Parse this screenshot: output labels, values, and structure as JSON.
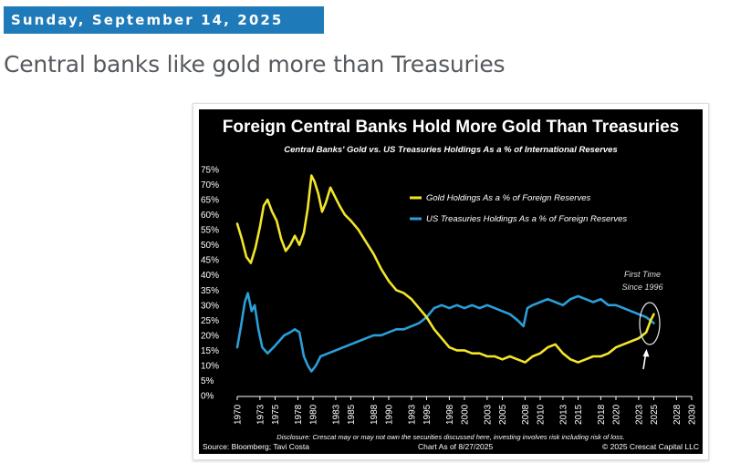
{
  "post": {
    "date": "Sunday, September 14, 2025",
    "title": "Central banks like gold more than Treasuries"
  },
  "chart_data": {
    "type": "line",
    "title": "Foreign Central Banks Hold More Gold Than Treasuries",
    "subtitle": "Central Banks' Gold vs. US Treasuries Holdings As a % of International Reserves",
    "ylim": [
      0,
      75
    ],
    "y_ticks": [
      "0%",
      "5%",
      "10%",
      "15%",
      "20%",
      "25%",
      "30%",
      "35%",
      "40%",
      "45%",
      "50%",
      "55%",
      "60%",
      "65%",
      "70%",
      "75%"
    ],
    "xlim": [
      1970,
      2030
    ],
    "x_ticks": [
      "1970",
      "1973",
      "1975",
      "1978",
      "1980",
      "1983",
      "1985",
      "1988",
      "1990",
      "1993",
      "1995",
      "1998",
      "2000",
      "2003",
      "2005",
      "2008",
      "2010",
      "2013",
      "2015",
      "2018",
      "2020",
      "2023",
      "2025",
      "2028",
      "2030"
    ],
    "legend_position": "top-right",
    "series": [
      {
        "name": "Gold Holdings As a % of Foreign Reserves",
        "color": "#f2e52b",
        "points": [
          [
            1970,
            57
          ],
          [
            1970.6,
            52
          ],
          [
            1971.2,
            46
          ],
          [
            1971.8,
            44
          ],
          [
            1972.4,
            49
          ],
          [
            1973,
            56
          ],
          [
            1973.5,
            63
          ],
          [
            1974,
            65
          ],
          [
            1974.6,
            61
          ],
          [
            1975.2,
            58
          ],
          [
            1975.8,
            52
          ],
          [
            1976.4,
            48
          ],
          [
            1977,
            50
          ],
          [
            1977.6,
            53
          ],
          [
            1978.2,
            50
          ],
          [
            1978.8,
            54
          ],
          [
            1979.3,
            62
          ],
          [
            1979.8,
            73
          ],
          [
            1980.2,
            71
          ],
          [
            1980.7,
            67
          ],
          [
            1981.2,
            61
          ],
          [
            1981.7,
            64
          ],
          [
            1982.3,
            69
          ],
          [
            1982.9,
            66
          ],
          [
            1983.5,
            63
          ],
          [
            1984.2,
            60
          ],
          [
            1985,
            58
          ],
          [
            1986,
            55
          ],
          [
            1987,
            51
          ],
          [
            1988,
            47
          ],
          [
            1989,
            42
          ],
          [
            1990,
            38
          ],
          [
            1991,
            35
          ],
          [
            1992,
            34
          ],
          [
            1993,
            32
          ],
          [
            1994,
            29
          ],
          [
            1995,
            26
          ],
          [
            1996,
            22
          ],
          [
            1997,
            19
          ],
          [
            1998,
            16
          ],
          [
            1999,
            15
          ],
          [
            2000,
            15
          ],
          [
            2001,
            14
          ],
          [
            2002,
            14
          ],
          [
            2003,
            13
          ],
          [
            2004,
            13
          ],
          [
            2005,
            12
          ],
          [
            2006,
            13
          ],
          [
            2007,
            12
          ],
          [
            2008,
            11
          ],
          [
            2009,
            13
          ],
          [
            2010,
            14
          ],
          [
            2011,
            16
          ],
          [
            2012,
            17
          ],
          [
            2013,
            14
          ],
          [
            2014,
            12
          ],
          [
            2015,
            11
          ],
          [
            2016,
            12
          ],
          [
            2017,
            13
          ],
          [
            2018,
            13
          ],
          [
            2019,
            14
          ],
          [
            2020,
            16
          ],
          [
            2021,
            17
          ],
          [
            2022,
            18
          ],
          [
            2023,
            19
          ],
          [
            2024,
            21
          ],
          [
            2024.6,
            25
          ],
          [
            2025,
            27
          ]
        ]
      },
      {
        "name": "US Treasuries Holdings As a % of Foreign Reserves",
        "color": "#2b9fd8",
        "points": [
          [
            1970,
            16
          ],
          [
            1970.5,
            23
          ],
          [
            1971,
            31
          ],
          [
            1971.4,
            34
          ],
          [
            1971.9,
            28
          ],
          [
            1972.3,
            30
          ],
          [
            1972.8,
            22
          ],
          [
            1973.3,
            16
          ],
          [
            1974,
            14
          ],
          [
            1974.8,
            16
          ],
          [
            1975.5,
            18
          ],
          [
            1976.2,
            20
          ],
          [
            1977,
            21
          ],
          [
            1977.6,
            22
          ],
          [
            1978.2,
            21
          ],
          [
            1978.8,
            13
          ],
          [
            1979.3,
            10
          ],
          [
            1979.8,
            8
          ],
          [
            1980.4,
            10
          ],
          [
            1981,
            13
          ],
          [
            1982,
            14
          ],
          [
            1983,
            15
          ],
          [
            1984,
            16
          ],
          [
            1985,
            17
          ],
          [
            1986,
            18
          ],
          [
            1987,
            19
          ],
          [
            1988,
            20
          ],
          [
            1989,
            20
          ],
          [
            1990,
            21
          ],
          [
            1991,
            22
          ],
          [
            1992,
            22
          ],
          [
            1993,
            23
          ],
          [
            1994,
            24
          ],
          [
            1995,
            26
          ],
          [
            1996,
            29
          ],
          [
            1997,
            30
          ],
          [
            1998,
            29
          ],
          [
            1999,
            30
          ],
          [
            2000,
            29
          ],
          [
            2001,
            30
          ],
          [
            2002,
            29
          ],
          [
            2003,
            30
          ],
          [
            2004,
            29
          ],
          [
            2005,
            28
          ],
          [
            2006,
            27
          ],
          [
            2007,
            25
          ],
          [
            2007.8,
            23
          ],
          [
            2008.3,
            29
          ],
          [
            2009,
            30
          ],
          [
            2010,
            31
          ],
          [
            2011,
            32
          ],
          [
            2012,
            31
          ],
          [
            2013,
            30
          ],
          [
            2014,
            32
          ],
          [
            2015,
            33
          ],
          [
            2016,
            32
          ],
          [
            2017,
            31
          ],
          [
            2018,
            32
          ],
          [
            2019,
            30
          ],
          [
            2020,
            30
          ],
          [
            2021,
            29
          ],
          [
            2022,
            28
          ],
          [
            2023,
            27
          ],
          [
            2024,
            26
          ],
          [
            2025,
            24
          ]
        ]
      }
    ],
    "annotation": "First Time Since 1996",
    "annotation_lines": [
      "First Time",
      "Since 1996"
    ],
    "disclosure": "Disclosure: Crescat may or may not own the securities discussed here, investing involves risk including risk of loss.",
    "source": "Source: Bloomberg; Tavi Costa",
    "chart_date": "Chart As of 8/27/2025",
    "copyright": "© 2025 Crescat Capital LLC"
  }
}
